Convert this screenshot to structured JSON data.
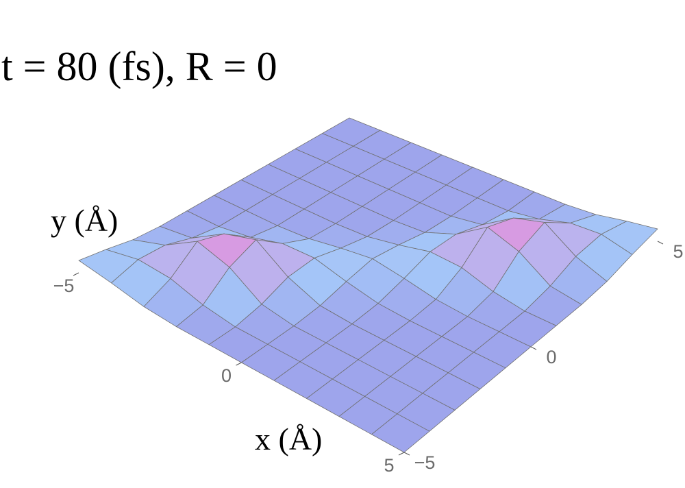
{
  "chart_data": {
    "type": "surface",
    "title": "t = 80 (fs), R = 0",
    "x_label": "x (Å)",
    "y_label": "y (Å)",
    "xlim": [
      -5,
      5
    ],
    "ylim": [
      -5,
      5
    ],
    "xticks": [
      {
        "value": -5,
        "label": "−5"
      },
      0,
      5
    ],
    "yticks": [
      {
        "value": -5,
        "label": "−5"
      },
      0,
      5
    ],
    "x": [
      -5,
      -4,
      -3,
      -2,
      -1,
      0,
      1,
      2,
      3,
      4,
      5
    ],
    "y": [
      -5,
      -4,
      -3,
      -2,
      -1,
      0,
      1,
      2,
      3,
      4,
      5
    ],
    "z": [
      [
        0.3,
        0.19,
        0.05,
        0,
        0,
        0,
        0,
        0,
        0,
        0,
        0
      ],
      [
        0.19,
        0.37,
        0.33,
        0.11,
        0,
        0,
        0,
        0,
        0,
        0,
        0
      ],
      [
        0.05,
        0.33,
        0.83,
        0.61,
        0.12,
        0,
        0,
        0,
        0,
        0,
        0
      ],
      [
        0,
        0.11,
        0.61,
        0.86,
        0.35,
        0.05,
        0,
        0,
        0,
        0,
        0
      ],
      [
        0,
        0,
        0.12,
        0.35,
        0.38,
        0.19,
        0.04,
        0,
        0,
        0,
        0
      ],
      [
        0,
        0,
        0,
        0.05,
        0.19,
        0.3,
        0.19,
        0.05,
        0,
        0,
        0
      ],
      [
        0,
        0,
        0,
        0,
        0.04,
        0.19,
        0.38,
        0.35,
        0.12,
        0,
        0
      ],
      [
        0,
        0,
        0,
        0,
        0,
        0.05,
        0.35,
        0.86,
        0.61,
        0.11,
        0
      ],
      [
        0,
        0,
        0,
        0,
        0,
        0,
        0.12,
        0.61,
        0.83,
        0.33,
        0.05
      ],
      [
        0,
        0,
        0,
        0,
        0,
        0,
        0,
        0.11,
        0.33,
        0.37,
        0.19
      ],
      [
        0,
        0,
        0,
        0,
        0,
        0,
        0,
        0,
        0.05,
        0.19,
        0.3
      ]
    ],
    "colormap": [
      "#9ea5ec",
      "#a4c6f8",
      "#f483d6"
    ],
    "mesh_color": "#6f6f6f"
  }
}
